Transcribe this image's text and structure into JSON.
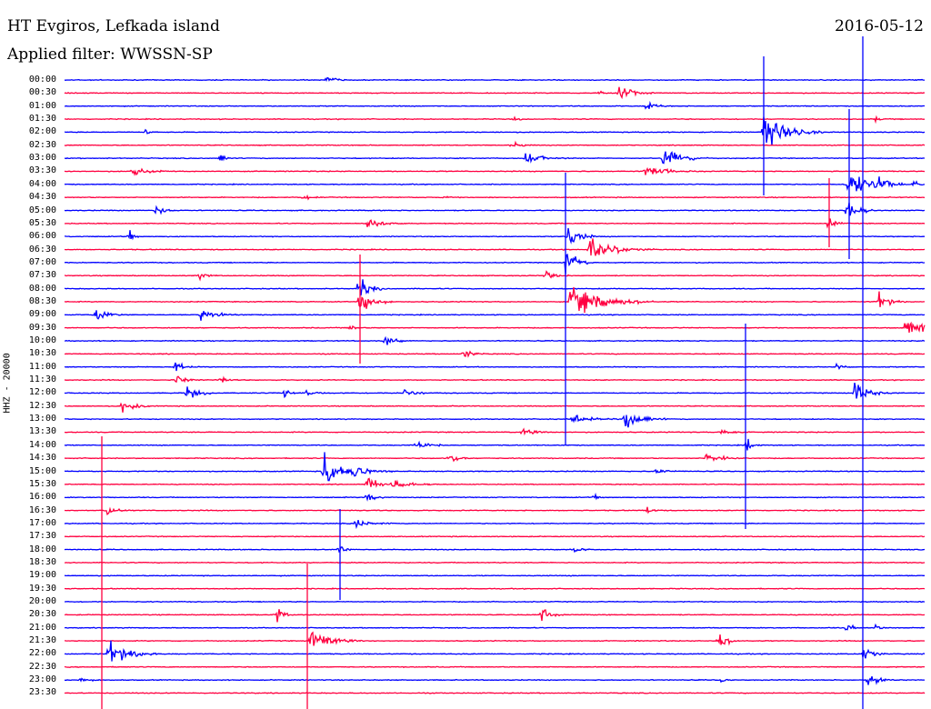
{
  "header": {
    "station": "HT Evgiros, Lefkada island",
    "date": "2016-05-12",
    "filter_label": "Applied filter: WWSSN-SP"
  },
  "chart_data": {
    "type": "line",
    "title": "HT Evgiros, Lefkada island",
    "ylabel": "HHZ - 20000",
    "row_labels": [
      "00:00",
      "00:30",
      "01:00",
      "01:30",
      "02:00",
      "02:30",
      "03:00",
      "03:30",
      "04:00",
      "04:30",
      "05:00",
      "05:30",
      "06:00",
      "06:30",
      "07:00",
      "07:30",
      "08:00",
      "08:30",
      "09:00",
      "09:30",
      "10:00",
      "10:30",
      "11:00",
      "11:30",
      "12:00",
      "12:30",
      "13:00",
      "13:30",
      "14:00",
      "14:30",
      "15:00",
      "15:30",
      "16:00",
      "16:30",
      "17:00",
      "17:30",
      "18:00",
      "18:30",
      "19:00",
      "19:30",
      "20:00",
      "20:30",
      "21:00",
      "21:30",
      "22:00",
      "22:30",
      "23:00",
      "23:30"
    ],
    "row_colors": [
      "#0000ff",
      "#ff0040"
    ],
    "grid": false,
    "legend": "none"
  }
}
